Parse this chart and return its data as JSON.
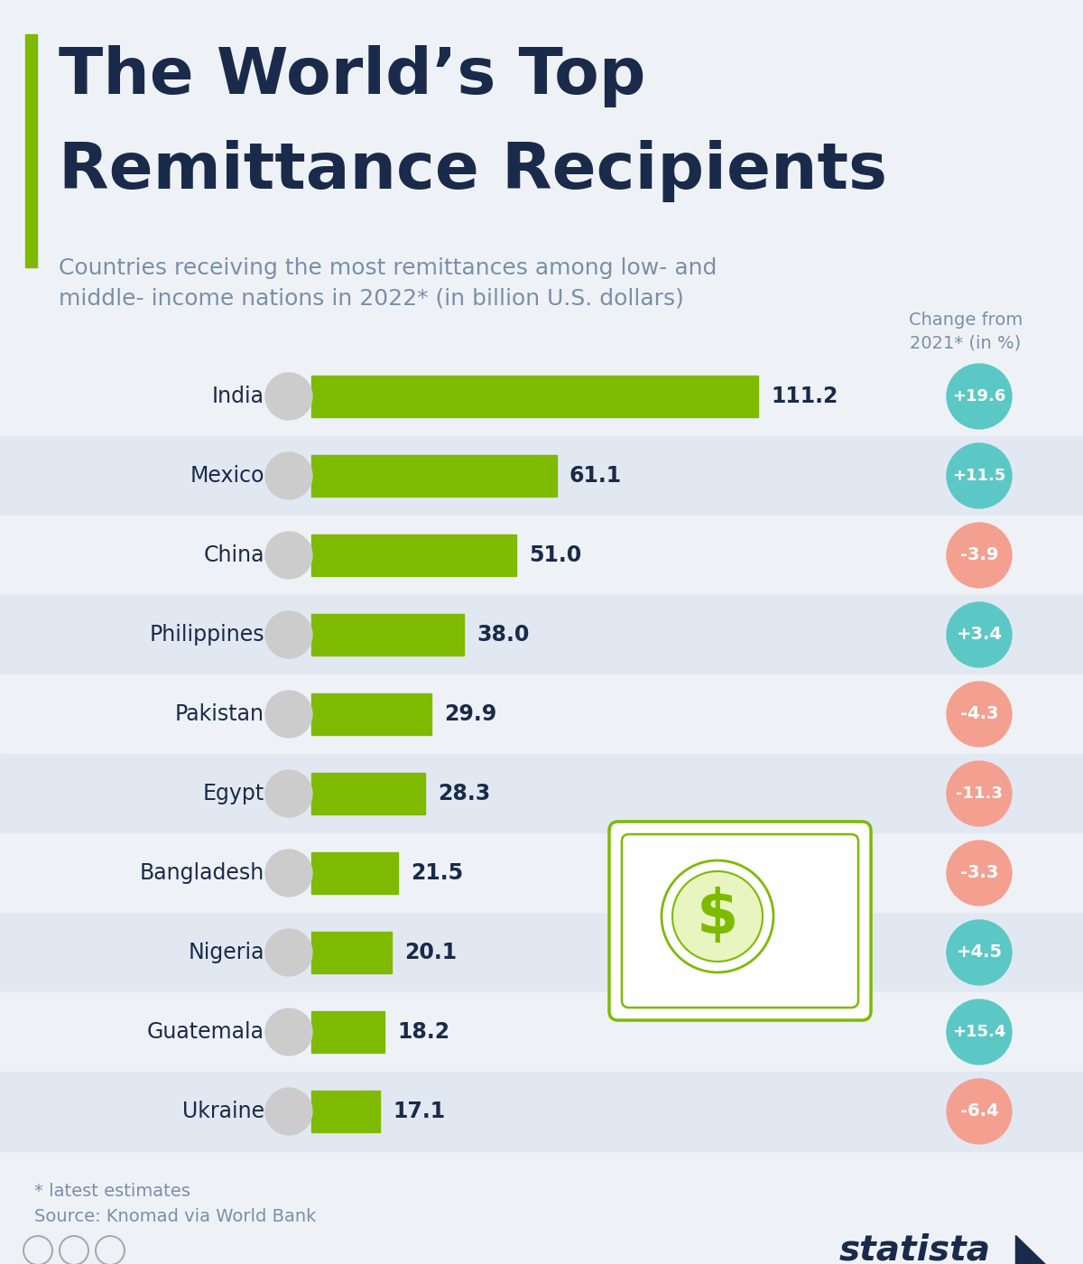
{
  "title_line1": "The World’s Top",
  "title_line2": "Remittance Recipients",
  "subtitle": "Countries receiving the most remittances among low- and\nmiddle- income nations in 2022* (in billion U.S. dollars)",
  "change_label": "Change from\n2021* (in %)",
  "countries": [
    "India",
    "Mexico",
    "China",
    "Philippines",
    "Pakistan",
    "Egypt",
    "Bangladesh",
    "Nigeria",
    "Guatemala",
    "Ukraine"
  ],
  "values": [
    111.2,
    61.1,
    51.0,
    38.0,
    29.9,
    28.3,
    21.5,
    20.1,
    18.2,
    17.1
  ],
  "changes": [
    "+19.6",
    "+11.5",
    "-3.9",
    "+3.4",
    "-4.3",
    "-11.3",
    "-3.3",
    "+4.5",
    "+15.4",
    "-6.4"
  ],
  "change_values": [
    19.6,
    11.5,
    -3.9,
    3.4,
    -4.3,
    -11.3,
    -3.3,
    4.5,
    15.4,
    -6.4
  ],
  "bar_color": "#7dba00",
  "positive_bubble_color": "#5bc8c5",
  "negative_bubble_color": "#f4a090",
  "bg_color": "#eef2f7",
  "row_alt_color": "#e2e8f2",
  "row_base_color": "#eef2f7",
  "title_color": "#1a2a4a",
  "subtitle_color": "#7a8fa8",
  "label_color": "#1a2a4a",
  "value_color": "#1a2a4a",
  "accent_bar_color": "#7dba00",
  "footer_note": "* latest estimates\nSource: Knomad via World Bank",
  "statista_text": "statista"
}
